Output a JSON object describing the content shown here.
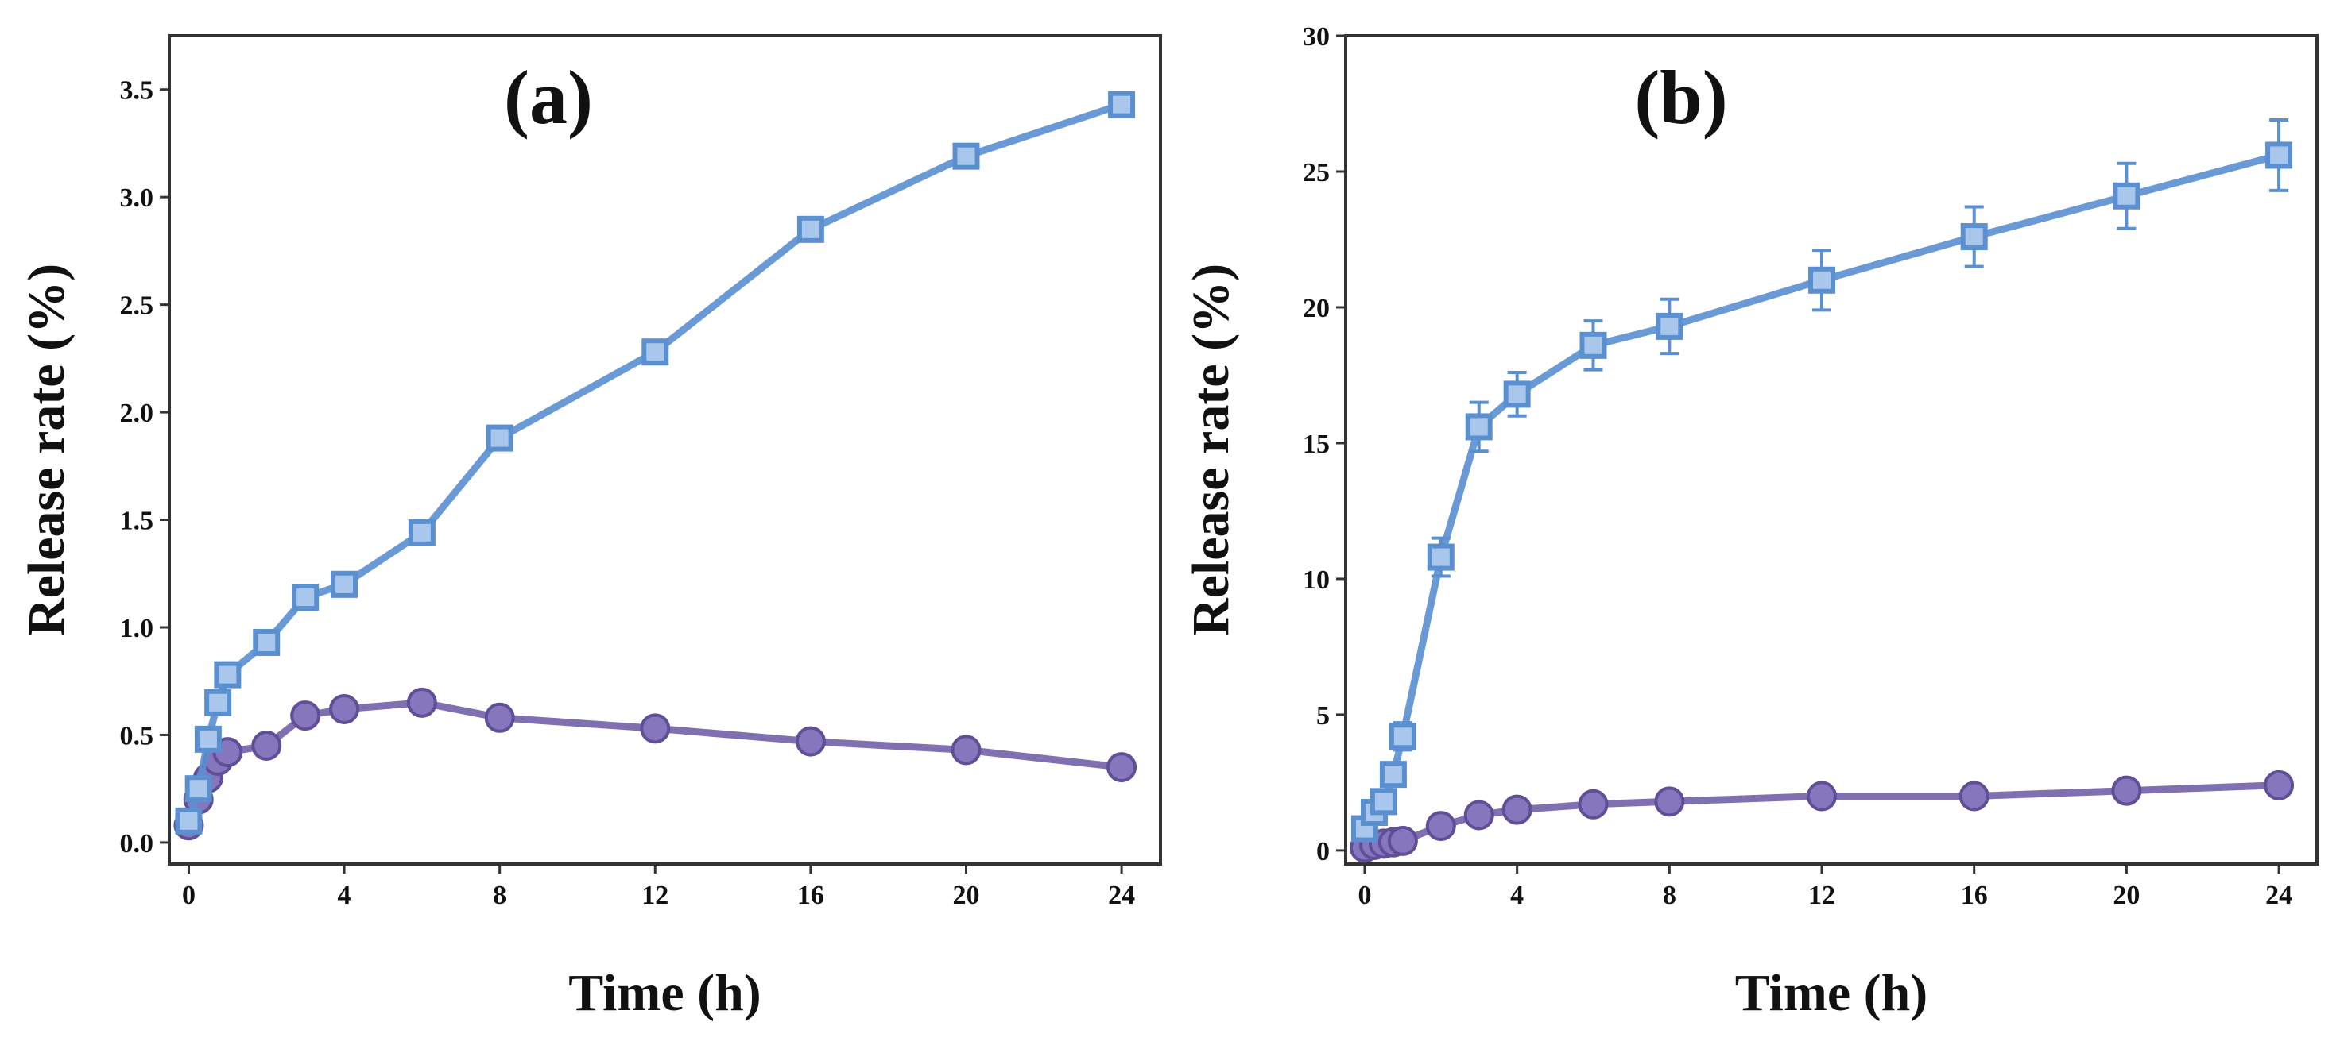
{
  "chart_data": [
    {
      "type": "line",
      "panel_label": "(a)",
      "xlabel": "Time (h)",
      "ylabel": "Release rate (%)",
      "xlim": [
        -0.5,
        25
      ],
      "ylim": [
        -0.1,
        3.75
      ],
      "xticks": [
        0,
        4,
        8,
        12,
        16,
        20,
        24
      ],
      "xtick_labels": [
        "0",
        "4",
        "8",
        "12",
        "16",
        "20",
        "24"
      ],
      "yticks": [
        0,
        0.5,
        1.0,
        1.5,
        2.0,
        2.5,
        3.0,
        3.5
      ],
      "ytick_labels": [
        "0.0",
        "0.5",
        "1.0",
        "1.5",
        "2.0",
        "2.5",
        "3.0",
        "3.5"
      ],
      "series": [
        {
          "name": "square-marker series",
          "marker": "square",
          "color": "#5a8fd0",
          "x": [
            0,
            0.25,
            0.5,
            0.75,
            1,
            2,
            3,
            4,
            6,
            8,
            12,
            16,
            20,
            24
          ],
          "y": [
            0.1,
            0.25,
            0.48,
            0.65,
            0.78,
            0.93,
            1.14,
            1.2,
            1.44,
            1.88,
            2.28,
            2.85,
            3.19,
            3.43
          ]
        },
        {
          "name": "circle-marker series",
          "marker": "circle",
          "color": "#7060a8",
          "x": [
            0,
            0.25,
            0.5,
            0.75,
            1,
            2,
            3,
            4,
            6,
            8,
            12,
            16,
            20,
            24
          ],
          "y": [
            0.08,
            0.2,
            0.3,
            0.38,
            0.42,
            0.45,
            0.59,
            0.62,
            0.65,
            0.58,
            0.53,
            0.47,
            0.43,
            0.35
          ]
        }
      ]
    },
    {
      "type": "line",
      "panel_label": "(b)",
      "xlabel": "Time (h)",
      "ylabel": "Release rate (%)",
      "xlim": [
        -0.5,
        25
      ],
      "ylim": [
        -0.5,
        30
      ],
      "xticks": [
        0,
        4,
        8,
        12,
        16,
        20,
        24
      ],
      "xtick_labels": [
        "0",
        "4",
        "8",
        "12",
        "16",
        "20",
        "24"
      ],
      "yticks": [
        0,
        5,
        10,
        15,
        20,
        25,
        30
      ],
      "ytick_labels": [
        "0",
        "5",
        "10",
        "15",
        "20",
        "25",
        "30"
      ],
      "series": [
        {
          "name": "square-marker series",
          "marker": "square",
          "color": "#5a8fd0",
          "x": [
            0,
            0.25,
            0.5,
            0.75,
            1,
            2,
            3,
            4,
            6,
            8,
            12,
            16,
            20,
            24
          ],
          "y": [
            0.8,
            1.4,
            1.8,
            2.8,
            4.2,
            10.8,
            15.6,
            16.8,
            18.6,
            19.3,
            21.0,
            22.6,
            24.1,
            25.6
          ],
          "error": [
            0,
            0,
            0,
            0.4,
            0.5,
            0.7,
            0.9,
            0.8,
            0.9,
            1.0,
            1.1,
            1.1,
            1.2,
            1.3
          ]
        },
        {
          "name": "circle-marker series",
          "marker": "circle",
          "color": "#7060a8",
          "x": [
            0,
            0.25,
            0.5,
            0.75,
            1,
            2,
            3,
            4,
            6,
            8,
            12,
            16,
            20,
            24
          ],
          "y": [
            0.1,
            0.2,
            0.25,
            0.3,
            0.35,
            0.9,
            1.3,
            1.5,
            1.7,
            1.8,
            2.0,
            2.0,
            2.2,
            2.4
          ]
        }
      ]
    }
  ]
}
